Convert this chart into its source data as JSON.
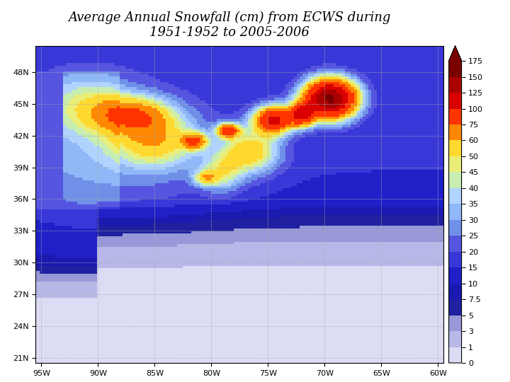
{
  "title_line1": "Average Annual Snowfall (cm) from ECWS during",
  "title_line2": "1951-1952 to 2005-2006",
  "title_fontsize": 13,
  "lon_min": -95.5,
  "lon_max": -59.5,
  "lat_min": 20.5,
  "lat_max": 50.5,
  "colorbar_levels": [
    0,
    1,
    3,
    5,
    7.5,
    10,
    15,
    20,
    25,
    30,
    35,
    40,
    45,
    50,
    60,
    75,
    100,
    125,
    150,
    175
  ],
  "colorbar_colors": [
    "#dcdcf5",
    "#b8b8e8",
    "#9898d8",
    "#2020a0",
    "#1a1ab0",
    "#2020c8",
    "#3838d8",
    "#5555e0",
    "#7090e8",
    "#90b8f8",
    "#b0d4ff",
    "#c8edb0",
    "#eaee78",
    "#ffd830",
    "#ff8800",
    "#ff3300",
    "#d80000",
    "#aa0000",
    "#7a0000",
    "#550000"
  ],
  "background_color": "white",
  "grid_color": "#aaaaaa",
  "lat_ticks": [
    21,
    24,
    27,
    30,
    33,
    36,
    39,
    42,
    45,
    48
  ],
  "lon_ticks": [
    -95,
    -90,
    -85,
    -80,
    -75,
    -70,
    -65,
    -60
  ],
  "figsize": [
    7.2,
    5.4
  ],
  "dpi": 100
}
